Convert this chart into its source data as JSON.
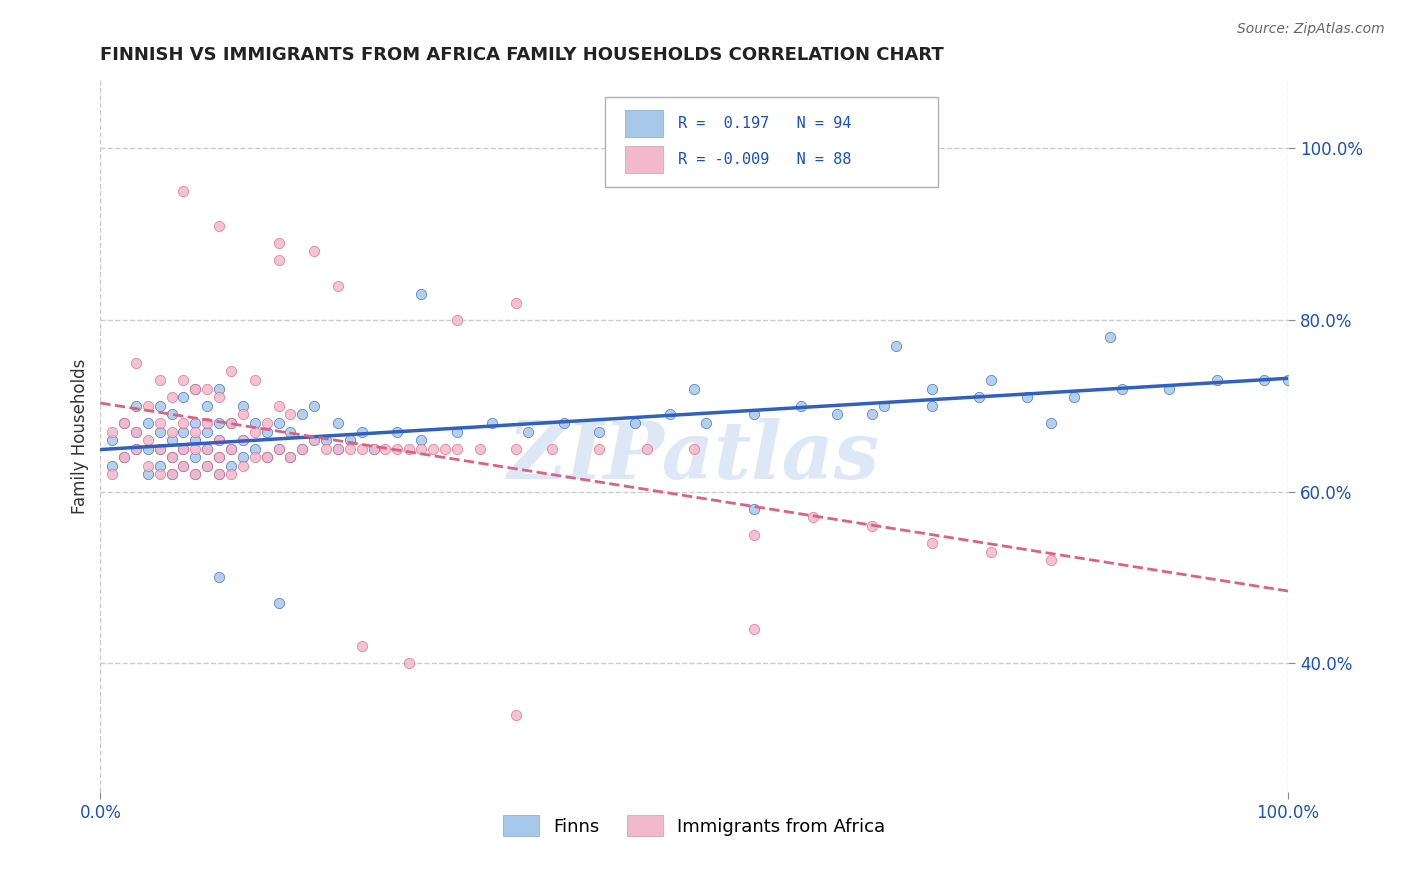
{
  "title": "FINNISH VS IMMIGRANTS FROM AFRICA FAMILY HOUSEHOLDS CORRELATION CHART",
  "source_text": "Source: ZipAtlas.com",
  "ylabel": "Family Households",
  "legend_r_finns": "0.197",
  "legend_n_finns": "94",
  "legend_r_africa": "-0.009",
  "legend_n_africa": "88",
  "legend_label_finns": "Finns",
  "legend_label_africa": "Immigrants from Africa",
  "color_finns": "#a8c8ea",
  "color_africa": "#f2b8cc",
  "trendline_color_finns": "#3060c0",
  "trendline_color_africa": "#e06080",
  "watermark_color": "#c8d8f0",
  "background_color": "#ffffff",
  "grid_color": "#cccccc",
  "ylim_min": 25,
  "ylim_max": 108,
  "xlim_min": 0,
  "xlim_max": 100,
  "yticks": [
    40,
    60,
    80,
    100
  ],
  "xticks": [
    0,
    100
  ],
  "finns_x": [
    1,
    1,
    2,
    2,
    3,
    3,
    3,
    4,
    4,
    4,
    5,
    5,
    5,
    5,
    6,
    6,
    6,
    6,
    7,
    7,
    7,
    7,
    8,
    8,
    8,
    8,
    8,
    9,
    9,
    9,
    9,
    10,
    10,
    10,
    10,
    10,
    11,
    11,
    11,
    12,
    12,
    12,
    13,
    13,
    14,
    14,
    15,
    15,
    16,
    16,
    17,
    17,
    18,
    18,
    19,
    20,
    20,
    21,
    22,
    23,
    25,
    27,
    30,
    33,
    36,
    39,
    42,
    45,
    48,
    51,
    55,
    59,
    62,
    66,
    70,
    74,
    78,
    82,
    86,
    90,
    94,
    98,
    100,
    10,
    15,
    50,
    55,
    65,
    67,
    70,
    75,
    80,
    85,
    27
  ],
  "finns_y": [
    63,
    66,
    64,
    68,
    65,
    67,
    70,
    62,
    65,
    68,
    63,
    65,
    67,
    70,
    62,
    64,
    66,
    69,
    63,
    65,
    67,
    71,
    62,
    64,
    66,
    68,
    72,
    63,
    65,
    67,
    70,
    62,
    64,
    66,
    68,
    72,
    63,
    65,
    68,
    64,
    66,
    70,
    65,
    68,
    64,
    67,
    65,
    68,
    64,
    67,
    65,
    69,
    66,
    70,
    66,
    65,
    68,
    66,
    67,
    65,
    67,
    66,
    67,
    68,
    67,
    68,
    67,
    68,
    69,
    68,
    69,
    70,
    69,
    70,
    70,
    71,
    71,
    71,
    72,
    72,
    73,
    73,
    73,
    50,
    47,
    72,
    58,
    69,
    77,
    72,
    73,
    68,
    78,
    83
  ],
  "africa_x": [
    1,
    1,
    2,
    2,
    3,
    3,
    3,
    4,
    4,
    4,
    5,
    5,
    5,
    5,
    6,
    6,
    6,
    6,
    7,
    7,
    7,
    7,
    8,
    8,
    8,
    8,
    9,
    9,
    9,
    9,
    10,
    10,
    10,
    10,
    11,
    11,
    11,
    11,
    12,
    12,
    12,
    13,
    13,
    13,
    14,
    14,
    15,
    15,
    16,
    16,
    17,
    18,
    19,
    20,
    21,
    22,
    23,
    24,
    25,
    26,
    27,
    28,
    29,
    30,
    32,
    35,
    38,
    42,
    46,
    50,
    55,
    60,
    65,
    15,
    20,
    30,
    35,
    55,
    70,
    75,
    80,
    7,
    10,
    15,
    18,
    22,
    26,
    35
  ],
  "africa_y": [
    62,
    67,
    64,
    68,
    65,
    67,
    75,
    63,
    66,
    70,
    62,
    65,
    68,
    73,
    62,
    64,
    67,
    71,
    63,
    65,
    68,
    73,
    62,
    65,
    67,
    72,
    63,
    65,
    68,
    72,
    62,
    64,
    66,
    71,
    62,
    65,
    68,
    74,
    63,
    66,
    69,
    64,
    67,
    73,
    64,
    68,
    65,
    70,
    64,
    69,
    65,
    66,
    65,
    65,
    65,
    65,
    65,
    65,
    65,
    65,
    65,
    65,
    65,
    65,
    65,
    65,
    65,
    65,
    65,
    65,
    55,
    57,
    56,
    87,
    84,
    80,
    82,
    44,
    54,
    53,
    52,
    95,
    91,
    89,
    88,
    42,
    40,
    34
  ]
}
